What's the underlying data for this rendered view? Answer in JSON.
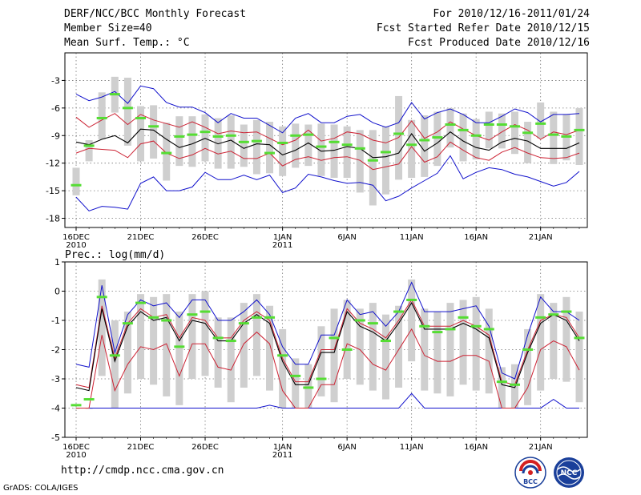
{
  "header": {
    "title": "DERF/NCC/BCC Monthly Forecast",
    "member_size": "Member Size=40",
    "variable": "Mean Surf. Temp.: °C",
    "period": "For 2010/12/16-2011/01/24",
    "start_date": "Fcst Started Refer Date 2010/12/15",
    "produced_date": "Fcst Produced Date 2010/12/16"
  },
  "footer": {
    "url": "http://cmdp.ncc.cma.gov.cn",
    "software": "GrADS: COLA/IGES",
    "logo_bcc_text": "BCC",
    "logo_ncc_text": "NCC"
  },
  "colors": {
    "box": "#cfcfcf",
    "median": "#55dd33",
    "mean": "#000000",
    "spread": "#cc2233",
    "extreme": "#1111cc",
    "grid": "#777777"
  },
  "chart_data": [
    {
      "id": "temp",
      "type": "boxplot-timeseries",
      "title": "Mean Surf. Temp.: °C",
      "ylim": [
        -19,
        0
      ],
      "yticks": [
        -18,
        -15,
        -12,
        -9,
        -6,
        -3
      ],
      "ytick_labels": [
        "-18",
        "-15",
        "-12",
        "-9",
        "-6",
        "-3"
      ],
      "xticks": [
        0,
        5,
        10,
        16,
        21,
        26,
        31,
        36
      ],
      "xtick_labels": [
        "16DEC\n2010",
        "21DEC",
        "26DEC",
        "1JAN\n2011",
        "6JAN",
        "11JAN",
        "16JAN",
        "21JAN"
      ],
      "days": 40,
      "series": {
        "max": [
          -4.5,
          -5.2,
          -4.8,
          -4.2,
          -5.5,
          -3.6,
          -3.9,
          -5.4,
          -5.9,
          -5.9,
          -6.5,
          -7.6,
          -6.6,
          -7.1,
          -7.1,
          -7.9,
          -8.7,
          -7.1,
          -6.6,
          -7.6,
          -7.6,
          -6.9,
          -6.7,
          -7.6,
          -8.1,
          -7.6,
          -5.4,
          -7.2,
          -6.5,
          -6.1,
          -6.7,
          -7.6,
          -7.6,
          -6.9,
          -6.1,
          -6.5,
          -7.5,
          -6.7,
          -6.7,
          -6.6
        ],
        "upper": [
          -7.0,
          -8.1,
          -7.3,
          -6.6,
          -7.8,
          -6.7,
          -7.3,
          -7.7,
          -8.1,
          -7.5,
          -8.1,
          -8.8,
          -8.5,
          -8.7,
          -8.6,
          -9.3,
          -10.0,
          -9.5,
          -8.4,
          -9.6,
          -9.3,
          -8.6,
          -8.8,
          -9.5,
          -9.8,
          -9.2,
          -7.4,
          -9.3,
          -8.6,
          -7.5,
          -8.3,
          -9.0,
          -9.5,
          -8.6,
          -7.8,
          -8.4,
          -9.4,
          -8.6,
          -8.9,
          -8.4
        ],
        "mean": [
          -9.7,
          -10.0,
          -9.4,
          -9.0,
          -9.8,
          -8.3,
          -8.4,
          -9.4,
          -10.3,
          -9.9,
          -9.3,
          -9.9,
          -9.5,
          -10.4,
          -9.9,
          -10.0,
          -11.1,
          -10.6,
          -9.8,
          -10.7,
          -10.6,
          -10.2,
          -10.4,
          -11.4,
          -11.3,
          -10.9,
          -8.8,
          -10.7,
          -9.8,
          -8.6,
          -9.6,
          -10.3,
          -10.6,
          -9.7,
          -9.3,
          -9.6,
          -10.4,
          -10.4,
          -10.4,
          -9.8
        ],
        "lower": [
          -10.9,
          -10.4,
          -10.5,
          -10.6,
          -11.4,
          -9.9,
          -9.6,
          -10.9,
          -11.5,
          -11.1,
          -10.4,
          -11.0,
          -10.7,
          -11.5,
          -11.5,
          -10.9,
          -12.3,
          -11.6,
          -11.3,
          -11.7,
          -11.4,
          -11.3,
          -11.7,
          -12.7,
          -12.4,
          -12.1,
          -10.2,
          -11.9,
          -11.3,
          -9.7,
          -10.6,
          -11.4,
          -11.7,
          -10.8,
          -10.3,
          -10.9,
          -11.4,
          -11.5,
          -11.4,
          -10.9
        ],
        "min": [
          -15.7,
          -17.2,
          -16.7,
          -16.8,
          -17.0,
          -14.2,
          -13.5,
          -15.0,
          -15.0,
          -14.6,
          -13.0,
          -13.8,
          -13.8,
          -13.3,
          -13.8,
          -13.3,
          -15.2,
          -14.7,
          -13.2,
          -13.5,
          -13.9,
          -14.2,
          -14.1,
          -14.4,
          -16.1,
          -15.6,
          -14.7,
          -13.9,
          -13.1,
          -11.2,
          -13.7,
          -13.0,
          -12.5,
          -12.7,
          -13.2,
          -13.5,
          -14.0,
          -14.5,
          -14.1,
          -12.9
        ],
        "median": [
          -14.4,
          -10.1,
          -7.1,
          -4.5,
          -6.0,
          -7.1,
          -8.0,
          -10.9,
          -9.1,
          -8.9,
          -8.6,
          -9.1,
          -9.0,
          -9.7,
          -9.6,
          -10.9,
          -9.8,
          -9.0,
          -8.9,
          -10.2,
          -9.7,
          -10.0,
          -10.4,
          -11.7,
          -10.8,
          -8.8,
          -10.0,
          -9.5,
          -9.2,
          -7.8,
          -8.4,
          -9.0,
          -7.8,
          -7.8,
          -8.0,
          -8.7,
          -7.7,
          -8.9,
          -9.1,
          -8.4
        ],
        "box_top": [
          -12.5,
          -9.5,
          -4.3,
          -2.6,
          -2.7,
          -5.8,
          -5.7,
          -7.6,
          -6.9,
          -6.9,
          -6.7,
          -7.1,
          -6.8,
          -7.8,
          -7.3,
          -7.5,
          -8.0,
          -7.7,
          -7.8,
          -7.7,
          -7.8,
          -8.0,
          -8.4,
          -8.4,
          -8.0,
          -4.7,
          -7.3,
          -6.8,
          -6.4,
          -6.0,
          -6.6,
          -7.2,
          -6.4,
          -6.6,
          -6.4,
          -7.5,
          -5.4,
          -6.4,
          -6.7,
          -6.0
        ],
        "box_bottom": [
          -15.5,
          -11.8,
          -9.4,
          -6.5,
          -10.1,
          -11.8,
          -11.5,
          -13.9,
          -12.3,
          -12.4,
          -11.8,
          -12.6,
          -12.6,
          -12.4,
          -13.2,
          -13.1,
          -13.4,
          -12.5,
          -12.3,
          -13.4,
          -13.6,
          -13.6,
          -15.2,
          -16.6,
          -15.4,
          -13.8,
          -13.6,
          -13.5,
          -12.3,
          -10.3,
          -11.8,
          -11.6,
          -10.4,
          -10.4,
          -11.0,
          -12.0,
          -9.3,
          -12.1,
          -11.7,
          -12.2
        ]
      }
    },
    {
      "id": "prec",
      "type": "boxplot-timeseries",
      "title": "Prec.: log(mm/d)",
      "ylim": [
        -5,
        1
      ],
      "yticks": [
        -5,
        -4,
        -3,
        -2,
        -1,
        0,
        1
      ],
      "ytick_labels": [
        "-5",
        "-4",
        "-3",
        "-2",
        "-1",
        "0",
        "1"
      ],
      "xticks": [
        0,
        5,
        10,
        16,
        21,
        26,
        31,
        36
      ],
      "xtick_labels": [
        "16DEC\n2010",
        "21DEC",
        "26DEC",
        "1JAN\n2011",
        "6JAN",
        "11JAN",
        "16JAN",
        "21JAN"
      ],
      "days": 40,
      "series": {
        "max": [
          -2.5,
          -2.6,
          0.2,
          -2.1,
          -0.8,
          -0.3,
          -0.5,
          -0.4,
          -0.9,
          -0.3,
          -0.3,
          -1.0,
          -1.0,
          -0.7,
          -0.3,
          -0.8,
          -1.9,
          -2.5,
          -2.5,
          -1.5,
          -1.5,
          -0.3,
          -0.8,
          -0.7,
          -1.2,
          -0.7,
          0.3,
          -0.7,
          -0.7,
          -0.7,
          -0.6,
          -0.5,
          -1.2,
          -2.8,
          -3.0,
          -1.5,
          -0.2,
          -0.7,
          -0.7,
          -1.0
        ],
        "upper": [
          -3.2,
          -3.3,
          -0.5,
          -2.3,
          -1.1,
          -0.6,
          -0.9,
          -0.8,
          -1.6,
          -0.9,
          -1.0,
          -1.6,
          -1.6,
          -1.0,
          -0.7,
          -1.0,
          -2.3,
          -3.1,
          -3.1,
          -2.0,
          -2.0,
          -0.6,
          -1.1,
          -1.3,
          -1.6,
          -1.0,
          -0.3,
          -1.2,
          -1.2,
          -1.2,
          -1.0,
          -1.2,
          -1.5,
          -3.1,
          -3.2,
          -2.0,
          -1.0,
          -0.8,
          -0.9,
          -1.6
        ],
        "mean": [
          -3.3,
          -3.4,
          -0.6,
          -2.4,
          -1.2,
          -0.7,
          -1.0,
          -0.9,
          -1.7,
          -1.0,
          -1.1,
          -1.7,
          -1.7,
          -1.1,
          -0.8,
          -1.1,
          -2.4,
          -3.2,
          -3.2,
          -2.1,
          -2.1,
          -0.7,
          -1.2,
          -1.4,
          -1.7,
          -1.1,
          -0.4,
          -1.3,
          -1.3,
          -1.3,
          -1.1,
          -1.3,
          -1.6,
          -3.2,
          -3.3,
          -2.1,
          -1.1,
          -0.8,
          -1.0,
          -1.7
        ],
        "lower": [
          -4.0,
          -4.0,
          -1.5,
          -3.4,
          -2.5,
          -1.9,
          -2.0,
          -1.8,
          -2.9,
          -1.8,
          -1.8,
          -2.6,
          -2.7,
          -1.8,
          -1.4,
          -1.8,
          -3.4,
          -4.0,
          -4.0,
          -3.2,
          -3.2,
          -1.8,
          -2.0,
          -2.5,
          -2.7,
          -2.0,
          -1.3,
          -2.2,
          -2.4,
          -2.4,
          -2.2,
          -2.2,
          -2.4,
          -4.0,
          -4.0,
          -3.3,
          -2.0,
          -1.7,
          -1.9,
          -2.7
        ],
        "min": [
          -4.0,
          -4.0,
          -4.0,
          -4.0,
          -4.0,
          -4.0,
          -4.0,
          -4.0,
          -4.0,
          -4.0,
          -4.0,
          -4.0,
          -4.0,
          -4.0,
          -4.0,
          -3.9,
          -4.0,
          -4.0,
          -4.0,
          -4.0,
          -4.0,
          -4.0,
          -4.0,
          -4.0,
          -4.0,
          -4.0,
          -3.5,
          -4.0,
          -4.0,
          -4.0,
          -4.0,
          -4.0,
          -4.0,
          -4.0,
          -4.0,
          -4.0,
          -4.0,
          -3.7,
          -4.0,
          -4.0
        ],
        "median": [
          -3.9,
          -3.7,
          -0.2,
          -2.2,
          -1.1,
          -0.4,
          -0.9,
          -1.0,
          -1.9,
          -0.8,
          -0.7,
          -1.6,
          -1.7,
          -1.1,
          -0.9,
          -0.9,
          -2.2,
          -2.9,
          -3.3,
          -3.0,
          -1.6,
          -2.0,
          -1.0,
          -1.1,
          -1.7,
          -0.7,
          -0.3,
          -1.2,
          -1.4,
          -1.3,
          -0.9,
          -1.2,
          -1.3,
          -3.1,
          -3.2,
          -2.0,
          -0.9,
          -0.8,
          -0.7,
          -1.6
        ],
        "box_top": [
          -4.0,
          -4.0,
          0.4,
          -1.0,
          -0.7,
          -0.1,
          -0.2,
          -0.1,
          -0.7,
          -0.1,
          0.0,
          -0.9,
          -0.9,
          -0.4,
          -0.1,
          -0.5,
          -1.3,
          -2.3,
          -2.5,
          -1.2,
          -0.6,
          -0.3,
          -0.6,
          -0.4,
          -0.8,
          -0.5,
          0.4,
          -0.6,
          -0.7,
          -0.4,
          -0.3,
          -0.2,
          -0.6,
          -2.6,
          -2.5,
          -1.3,
          -0.1,
          -0.4,
          -0.2,
          -0.7
        ],
        "box_bottom": [
          -4.0,
          -4.0,
          -2.9,
          -4.0,
          -3.5,
          -3.0,
          -3.2,
          -3.6,
          -3.9,
          -3.0,
          -2.9,
          -3.3,
          -3.8,
          -3.3,
          -2.9,
          -3.4,
          -4.0,
          -4.0,
          -4.0,
          -3.6,
          -3.8,
          -3.0,
          -3.2,
          -3.4,
          -3.7,
          -3.3,
          -2.4,
          -3.4,
          -3.5,
          -3.6,
          -3.2,
          -3.4,
          -3.5,
          -4.0,
          -4.0,
          -3.9,
          -3.4,
          -3.0,
          -3.1,
          -3.8
        ]
      }
    }
  ]
}
